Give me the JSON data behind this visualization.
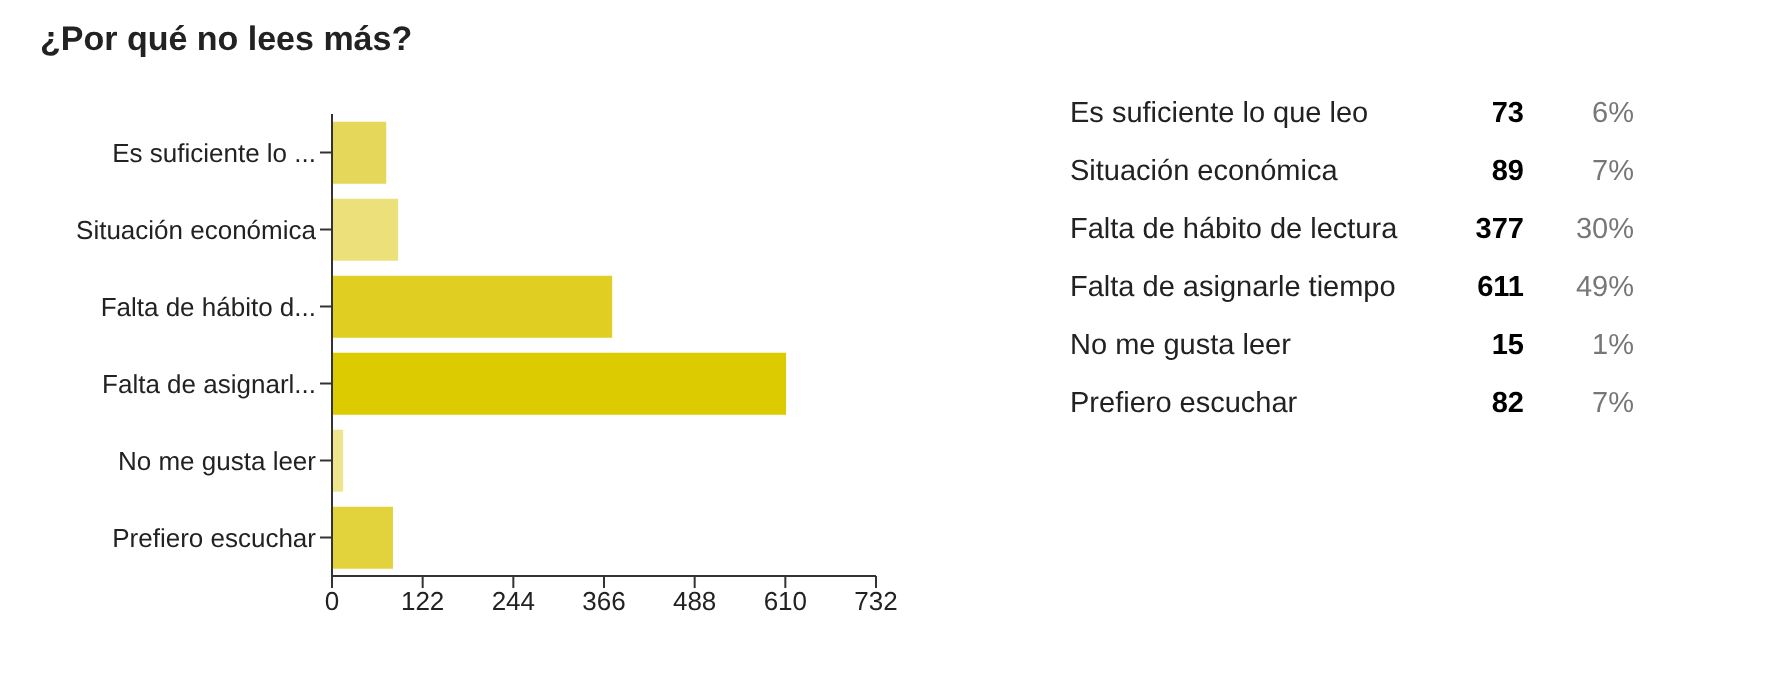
{
  "chart_data": [
    {
      "type": "bar",
      "title": "¿Por qué no lees más?",
      "orientation": "horizontal",
      "categories": [
        "Es suficiente lo ...",
        "Situación económica",
        "Falta de hábito d...",
        "Falta de asignarl...",
        "No me gusta leer",
        "Prefiero escuchar"
      ],
      "values": [
        73,
        89,
        377,
        611,
        15,
        82
      ],
      "colors": [
        "#e5d75a",
        "#ebe07a",
        "#e0cf22",
        "#dccb00",
        "#efe58e",
        "#e2d23c"
      ],
      "xlim": [
        0,
        732
      ],
      "xticks": [
        0,
        122,
        244,
        366,
        488,
        610,
        732
      ]
    },
    {
      "type": "other",
      "categories": [
        "Es suficiente lo que leo",
        "Situación económica",
        "Falta de hábito de lectura",
        "Falta de asignarle tiempo",
        "No me gusta leer",
        "Prefiero escuchar"
      ],
      "data_labels": true,
      "series": [
        {
          "color": "#000000",
          "values": [
            73,
            89,
            377,
            611,
            15,
            82
          ]
        },
        {
          "color": "#777777",
          "values": [
            6,
            7,
            30,
            49,
            1,
            7
          ],
          "value_labels": [
            "6%",
            "7%",
            "30%",
            "49%",
            "1%",
            "7%"
          ]
        }
      ]
    }
  ]
}
